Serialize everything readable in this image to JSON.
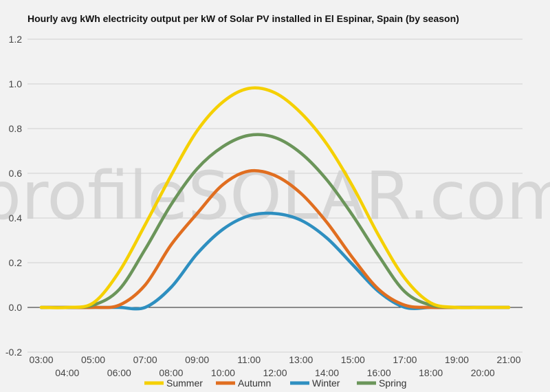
{
  "chart_data": {
    "type": "line",
    "title": "Hourly avg kWh electricity output per kW of Solar PV installed in El Espinar, Spain (by season)",
    "watermark": "profileSOLAR.com",
    "xlabel": "",
    "ylabel": "",
    "ylim": [
      -0.2,
      1.2
    ],
    "yticks": [
      "-0.2",
      "0.0",
      "0.2",
      "0.4",
      "0.6",
      "0.8",
      "1.0",
      "1.2"
    ],
    "x": [
      "03:00",
      "04:00",
      "05:00",
      "06:00",
      "07:00",
      "08:00",
      "09:00",
      "10:00",
      "11:00",
      "12:00",
      "13:00",
      "14:00",
      "15:00",
      "16:00",
      "17:00",
      "18:00",
      "19:00",
      "20:00",
      "21:00"
    ],
    "grid": true,
    "legend_position": "bottom",
    "series": [
      {
        "name": "Summer",
        "color": "#f5d000",
        "values": [
          0.0,
          0.0,
          0.02,
          0.16,
          0.37,
          0.59,
          0.79,
          0.92,
          0.98,
          0.96,
          0.87,
          0.73,
          0.54,
          0.32,
          0.13,
          0.02,
          0.0,
          0.0,
          0.0
        ]
      },
      {
        "name": "Autumn",
        "color": "#e06e20",
        "values": [
          0.0,
          0.0,
          0.0,
          0.01,
          0.1,
          0.28,
          0.42,
          0.55,
          0.61,
          0.59,
          0.51,
          0.38,
          0.22,
          0.08,
          0.01,
          0.0,
          0.0,
          0.0,
          0.0
        ]
      },
      {
        "name": "Winter",
        "color": "#2e8fc0",
        "values": [
          0.0,
          0.0,
          0.0,
          0.0,
          0.0,
          0.09,
          0.24,
          0.35,
          0.41,
          0.42,
          0.39,
          0.31,
          0.19,
          0.07,
          0.0,
          0.0,
          0.0,
          0.0,
          0.0
        ]
      },
      {
        "name": "Spring",
        "color": "#6b955a",
        "values": [
          0.0,
          0.0,
          0.01,
          0.08,
          0.26,
          0.46,
          0.62,
          0.72,
          0.77,
          0.76,
          0.69,
          0.57,
          0.41,
          0.23,
          0.07,
          0.01,
          0.0,
          0.0,
          0.0
        ]
      }
    ]
  }
}
